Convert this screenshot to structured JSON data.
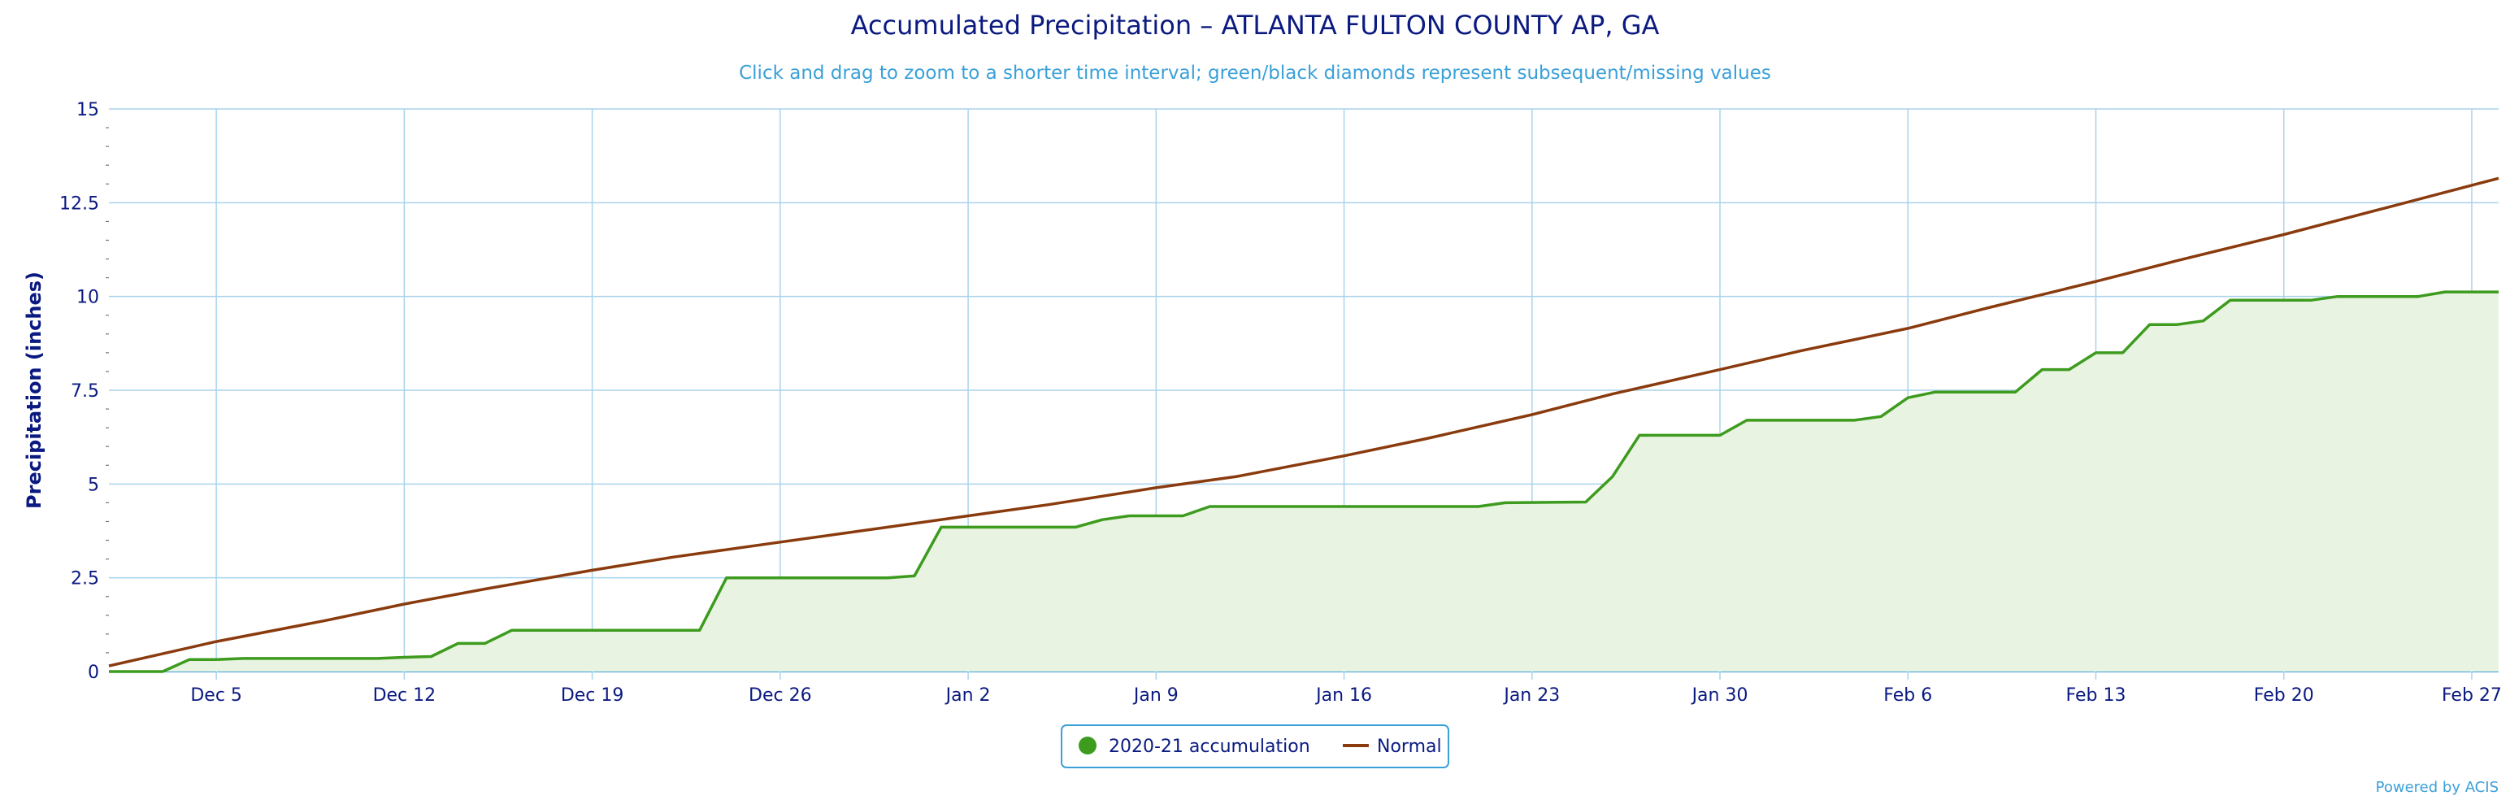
{
  "chart_data": {
    "type": "line",
    "title": "Accumulated Precipitation – ATLANTA FULTON COUNTY AP, GA",
    "subtitle": "Click and drag to zoom to a shorter time interval; green/black diamonds represent subsequent/missing values",
    "ylabel": "Precipitation (inches)",
    "ylim": [
      0,
      15
    ],
    "y_ticks": [
      "0",
      "2.5",
      "5",
      "7.5",
      "10",
      "12.5",
      "15"
    ],
    "x_ticks": [
      "Dec 5",
      "Dec 12",
      "Dec 19",
      "Dec 26",
      "Jan 2",
      "Jan 9",
      "Jan 16",
      "Jan 23",
      "Jan 30",
      "Feb 6",
      "Feb 13",
      "Feb 20",
      "Feb 27"
    ],
    "x_start": "2020-12-01",
    "x_end": "2021-02-28",
    "grid": true,
    "legend_position": "bottom-center",
    "series": [
      {
        "name": "2020-21 accumulation",
        "color": "#3d9b1e",
        "fill": "#e8f3e1",
        "points": [
          [
            "2020-12-01",
            0
          ],
          [
            "2020-12-03",
            0
          ],
          [
            "2020-12-04",
            0.32
          ],
          [
            "2020-12-05",
            0.32
          ],
          [
            "2020-12-06",
            0.35
          ],
          [
            "2020-12-11",
            0.35
          ],
          [
            "2020-12-12",
            0.38
          ],
          [
            "2020-12-13",
            0.4
          ],
          [
            "2020-12-14",
            0.75
          ],
          [
            "2020-12-15",
            0.75
          ],
          [
            "2020-12-16",
            1.1
          ],
          [
            "2020-12-23",
            1.1
          ],
          [
            "2020-12-24",
            2.5
          ],
          [
            "2020-12-30",
            2.5
          ],
          [
            "2020-12-31",
            2.55
          ],
          [
            "2021-01-01",
            3.85
          ],
          [
            "2021-01-05",
            3.85
          ],
          [
            "2021-01-06",
            3.85
          ],
          [
            "2021-01-07",
            4.05
          ],
          [
            "2021-01-08",
            4.15
          ],
          [
            "2021-01-10",
            4.15
          ],
          [
            "2021-01-11",
            4.4
          ],
          [
            "2021-01-21",
            4.4
          ],
          [
            "2021-01-22",
            4.5
          ],
          [
            "2021-01-25",
            4.52
          ],
          [
            "2021-01-26",
            5.2
          ],
          [
            "2021-01-27",
            6.3
          ],
          [
            "2021-01-30",
            6.3
          ],
          [
            "2021-01-31",
            6.7
          ],
          [
            "2021-02-04",
            6.7
          ],
          [
            "2021-02-05",
            6.8
          ],
          [
            "2021-02-06",
            7.3
          ],
          [
            "2021-02-07",
            7.45
          ],
          [
            "2021-02-10",
            7.45
          ],
          [
            "2021-02-11",
            8.05
          ],
          [
            "2021-02-12",
            8.05
          ],
          [
            "2021-02-13",
            8.5
          ],
          [
            "2021-02-14",
            8.5
          ],
          [
            "2021-02-15",
            9.25
          ],
          [
            "2021-02-16",
            9.25
          ],
          [
            "2021-02-17",
            9.35
          ],
          [
            "2021-02-18",
            9.9
          ],
          [
            "2021-02-21",
            9.9
          ],
          [
            "2021-02-22",
            10.0
          ],
          [
            "2021-02-25",
            10.0
          ],
          [
            "2021-02-26",
            10.12
          ],
          [
            "2021-02-28",
            10.12
          ]
        ]
      },
      {
        "name": "Normal",
        "color": "#8a3b0e",
        "points": [
          [
            "2020-12-01",
            0.15
          ],
          [
            "2020-12-05",
            0.8
          ],
          [
            "2020-12-09",
            1.35
          ],
          [
            "2020-12-12",
            1.8
          ],
          [
            "2020-12-15",
            2.2
          ],
          [
            "2020-12-19",
            2.7
          ],
          [
            "2020-12-22",
            3.05
          ],
          [
            "2020-12-26",
            3.45
          ],
          [
            "2020-12-29",
            3.75
          ],
          [
            "2021-01-02",
            4.15
          ],
          [
            "2021-01-05",
            4.45
          ],
          [
            "2021-01-09",
            4.9
          ],
          [
            "2021-01-12",
            5.2
          ],
          [
            "2021-01-16",
            5.75
          ],
          [
            "2021-01-19",
            6.2
          ],
          [
            "2021-01-23",
            6.85
          ],
          [
            "2021-01-26",
            7.4
          ],
          [
            "2021-01-30",
            8.05
          ],
          [
            "2021-02-02",
            8.55
          ],
          [
            "2021-02-06",
            9.15
          ],
          [
            "2021-02-09",
            9.7
          ],
          [
            "2021-02-13",
            10.4
          ],
          [
            "2021-02-16",
            10.95
          ],
          [
            "2021-02-20",
            11.65
          ],
          [
            "2021-02-24",
            12.4
          ],
          [
            "2021-02-28",
            13.15
          ]
        ]
      }
    ],
    "credit": "Powered by ACIS"
  }
}
